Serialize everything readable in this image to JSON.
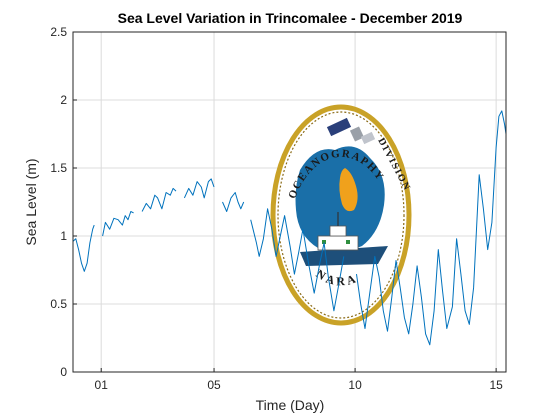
{
  "chart_data": {
    "type": "line",
    "title": "Sea Level Variation in Trincomalee - December 2019",
    "xlabel": "Time (Day)",
    "ylabel": "Sea Level (m)",
    "xlim": [
      0,
      15.35
    ],
    "ylim": [
      0,
      2.5
    ],
    "x_ticks": [
      {
        "value": 1,
        "label": "01"
      },
      {
        "value": 5,
        "label": "05"
      },
      {
        "value": 10,
        "label": "10"
      },
      {
        "value": 15,
        "label": "15"
      }
    ],
    "y_ticks": [
      {
        "value": 0,
        "label": "0"
      },
      {
        "value": 0.5,
        "label": "0.5"
      },
      {
        "value": 1,
        "label": "1"
      },
      {
        "value": 1.5,
        "label": "1.5"
      },
      {
        "value": 2,
        "label": "2"
      },
      {
        "value": 2.5,
        "label": "2.5"
      }
    ],
    "grid": true,
    "line_color": "#0072bd",
    "series": [
      {
        "segments": [
          [
            [
              0.0,
              0.96
            ],
            [
              0.1,
              0.98
            ],
            [
              0.2,
              0.9
            ],
            [
              0.3,
              0.8
            ],
            [
              0.4,
              0.74
            ],
            [
              0.5,
              0.8
            ],
            [
              0.6,
              0.95
            ],
            [
              0.7,
              1.05
            ],
            [
              0.75,
              1.08
            ]
          ],
          [
            [
              1.05,
              1.0
            ],
            [
              1.15,
              1.1
            ],
            [
              1.3,
              1.05
            ],
            [
              1.45,
              1.13
            ],
            [
              1.6,
              1.12
            ],
            [
              1.75,
              1.08
            ],
            [
              1.85,
              1.15
            ],
            [
              1.95,
              1.12
            ],
            [
              2.05,
              1.18
            ],
            [
              2.15,
              1.17
            ]
          ],
          [
            [
              2.45,
              1.18
            ],
            [
              2.6,
              1.24
            ],
            [
              2.75,
              1.2
            ],
            [
              2.9,
              1.3
            ],
            [
              3.0,
              1.28
            ],
            [
              3.15,
              1.2
            ],
            [
              3.3,
              1.32
            ],
            [
              3.45,
              1.3
            ],
            [
              3.55,
              1.35
            ],
            [
              3.65,
              1.33
            ]
          ],
          [
            [
              3.95,
              1.28
            ],
            [
              4.1,
              1.35
            ],
            [
              4.25,
              1.3
            ],
            [
              4.4,
              1.4
            ],
            [
              4.55,
              1.36
            ],
            [
              4.65,
              1.28
            ],
            [
              4.8,
              1.4
            ],
            [
              4.9,
              1.42
            ],
            [
              5.0,
              1.36
            ]
          ],
          [
            [
              5.3,
              1.25
            ],
            [
              5.45,
              1.18
            ],
            [
              5.6,
              1.28
            ],
            [
              5.75,
              1.32
            ],
            [
              5.85,
              1.25
            ],
            [
              5.95,
              1.2
            ],
            [
              6.05,
              1.25
            ]
          ],
          [
            [
              6.3,
              1.12
            ],
            [
              6.5,
              0.95
            ],
            [
              6.6,
              0.85
            ],
            [
              6.75,
              0.98
            ],
            [
              6.9,
              1.2
            ],
            [
              7.05,
              1.05
            ],
            [
              7.2,
              0.85
            ],
            [
              7.35,
              1.0
            ],
            [
              7.5,
              1.15
            ],
            [
              7.7,
              0.92
            ],
            [
              7.85,
              0.72
            ],
            [
              8.0,
              0.88
            ],
            [
              8.15,
              1.05
            ],
            [
              8.35,
              0.8
            ],
            [
              8.55,
              0.58
            ],
            [
              8.75,
              0.8
            ],
            [
              8.9,
              0.95
            ],
            [
              9.05,
              0.7
            ],
            [
              9.25,
              0.45
            ],
            [
              9.4,
              0.62
            ],
            [
              9.6,
              0.85
            ]
          ],
          [
            [
              10.05,
              0.72
            ],
            [
              10.2,
              0.5
            ],
            [
              10.35,
              0.32
            ],
            [
              10.5,
              0.55
            ],
            [
              10.7,
              0.85
            ],
            [
              10.85,
              0.7
            ],
            [
              11.0,
              0.45
            ],
            [
              11.15,
              0.3
            ],
            [
              11.3,
              0.55
            ],
            [
              11.45,
              0.82
            ],
            [
              11.6,
              0.62
            ],
            [
              11.75,
              0.4
            ],
            [
              11.9,
              0.28
            ],
            [
              12.05,
              0.5
            ],
            [
              12.2,
              0.78
            ],
            [
              12.35,
              0.55
            ],
            [
              12.5,
              0.28
            ],
            [
              12.65,
              0.2
            ],
            [
              12.8,
              0.45
            ],
            [
              12.95,
              0.9
            ],
            [
              13.1,
              0.6
            ],
            [
              13.25,
              0.32
            ],
            [
              13.45,
              0.48
            ],
            [
              13.6,
              0.98
            ],
            [
              13.75,
              0.72
            ],
            [
              13.9,
              0.45
            ],
            [
              14.05,
              0.35
            ],
            [
              14.2,
              0.62
            ],
            [
              14.4,
              1.45
            ],
            [
              14.55,
              1.2
            ],
            [
              14.7,
              0.9
            ],
            [
              14.85,
              1.1
            ],
            [
              15.0,
              1.65
            ],
            [
              15.1,
              1.88
            ],
            [
              15.2,
              1.92
            ],
            [
              15.3,
              1.82
            ],
            [
              15.35,
              1.75
            ]
          ]
        ]
      }
    ]
  },
  "logo": {
    "top_text": "OCEANOGRAPHY",
    "right_text": "DIVISION",
    "bottom_text": "NARA"
  }
}
